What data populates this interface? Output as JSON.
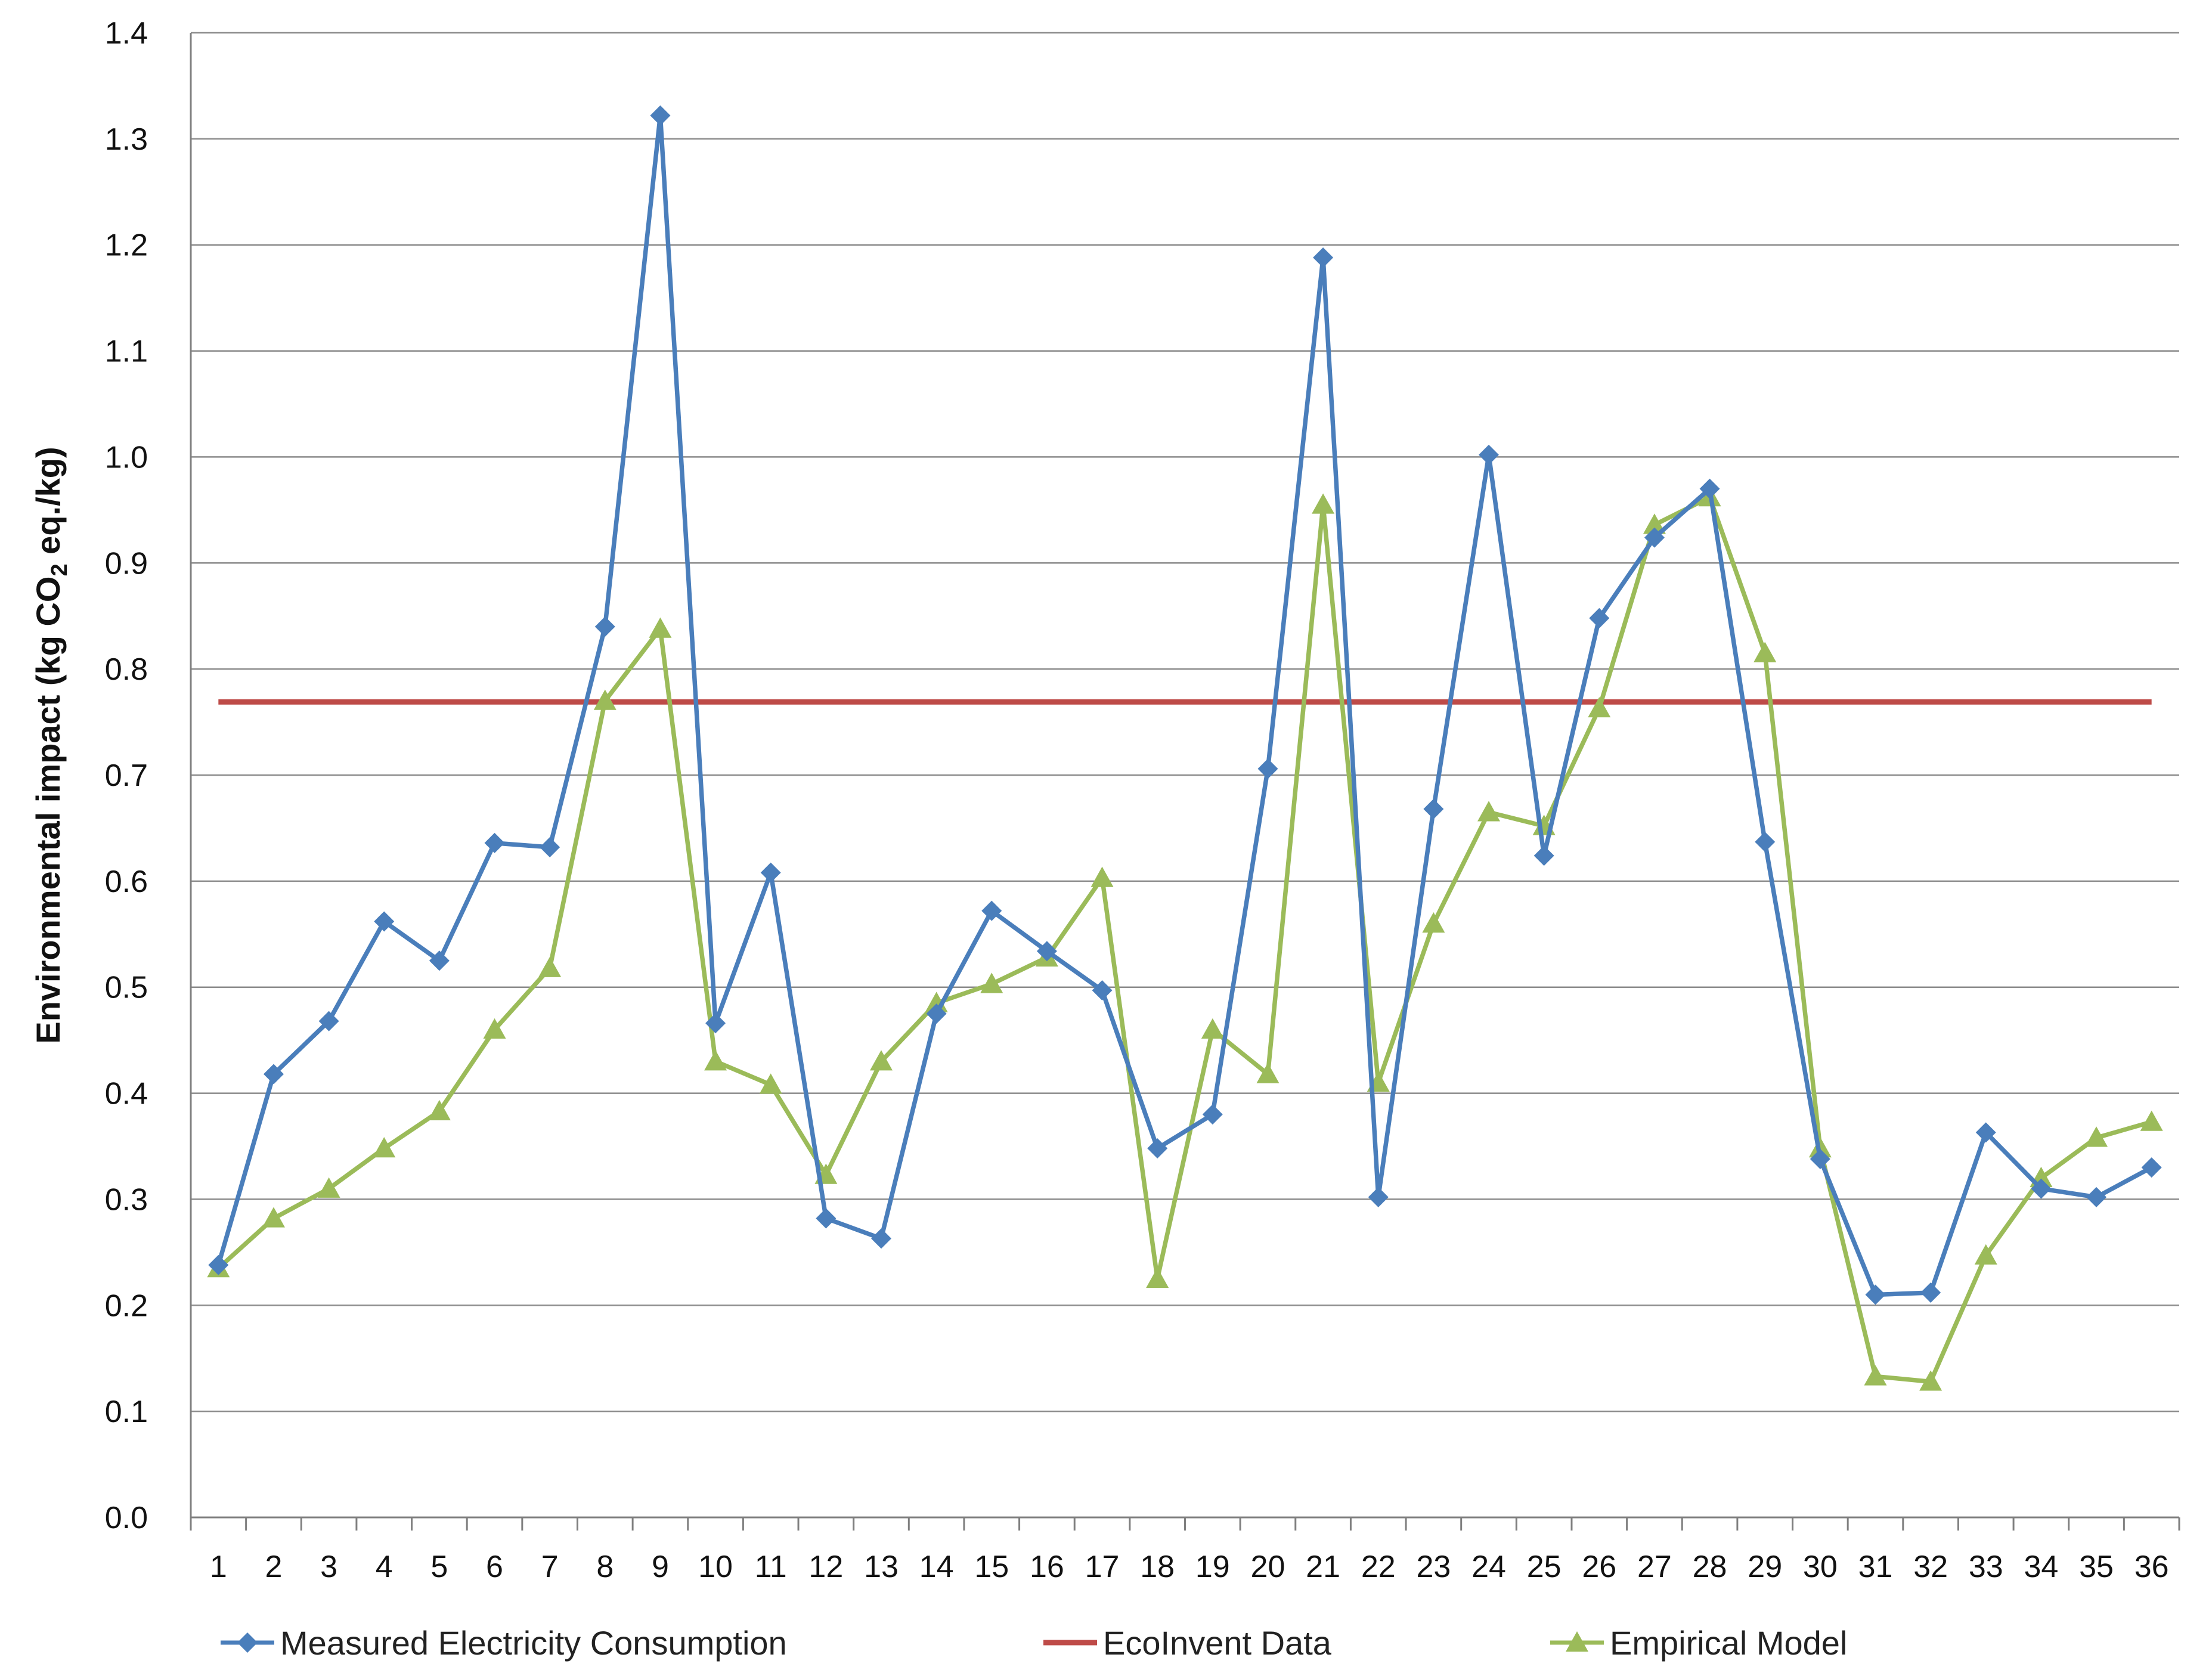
{
  "chart_data": {
    "type": "line",
    "ylabel": "Environmental impact  (kg CO2 eq./kg)",
    "ylabel_parts": {
      "pre": "Environmental impact  (kg CO",
      "sub": "2",
      "post": " eq./kg)"
    },
    "ylim": [
      0,
      1.4
    ],
    "yticks": [
      "0.0",
      "0.1",
      "0.2",
      "0.3",
      "0.4",
      "0.5",
      "0.6",
      "0.7",
      "0.8",
      "0.9",
      "1.0",
      "1.1",
      "1.2",
      "1.3",
      "1.4"
    ],
    "x": [
      1,
      2,
      3,
      4,
      5,
      6,
      7,
      8,
      9,
      10,
      11,
      12,
      13,
      14,
      15,
      16,
      17,
      18,
      19,
      20,
      21,
      22,
      23,
      24,
      25,
      26,
      27,
      28,
      29,
      30,
      31,
      32,
      33,
      34,
      35,
      36
    ],
    "grid": "horizontal",
    "legend_position": "bottom",
    "series": [
      {
        "name": "Measured Electricity Consumption",
        "color": "#4A7EBB",
        "marker": "diamond",
        "values": [
          0.238,
          0.418,
          0.468,
          0.562,
          0.525,
          0.636,
          0.632,
          0.84,
          1.322,
          0.466,
          0.608,
          0.282,
          0.263,
          0.475,
          0.572,
          0.534,
          0.497,
          0.348,
          0.38,
          0.706,
          1.188,
          0.302,
          0.668,
          1.002,
          0.624,
          0.848,
          0.924,
          0.97,
          0.637,
          0.338,
          0.21,
          0.212,
          0.363,
          0.31,
          0.302,
          0.33
        ]
      },
      {
        "name": "EcoInvent Data",
        "color": "#BE4B48",
        "marker": "none",
        "values": [
          0.769,
          0.769,
          0.769,
          0.769,
          0.769,
          0.769,
          0.769,
          0.769,
          0.769,
          0.769,
          0.769,
          0.769,
          0.769,
          0.769,
          0.769,
          0.769,
          0.769,
          0.769,
          0.769,
          0.769,
          0.769,
          0.769,
          0.769,
          0.769,
          0.769,
          0.769,
          0.769,
          0.769,
          0.769,
          0.769,
          0.769,
          0.769,
          0.769,
          0.769,
          0.769,
          0.769
        ]
      },
      {
        "name": "Empirical Model",
        "color": "#9BBB59",
        "marker": "triangle",
        "values": [
          0.235,
          0.282,
          0.31,
          0.348,
          0.383,
          0.46,
          0.518,
          0.77,
          0.838,
          0.43,
          0.408,
          0.323,
          0.43,
          0.485,
          0.503,
          0.528,
          0.603,
          0.225,
          0.46,
          0.418,
          0.955,
          0.41,
          0.56,
          0.665,
          0.652,
          0.763,
          0.936,
          0.962,
          0.815,
          0.348,
          0.133,
          0.128,
          0.247,
          0.32,
          0.358,
          0.373
        ]
      }
    ]
  }
}
